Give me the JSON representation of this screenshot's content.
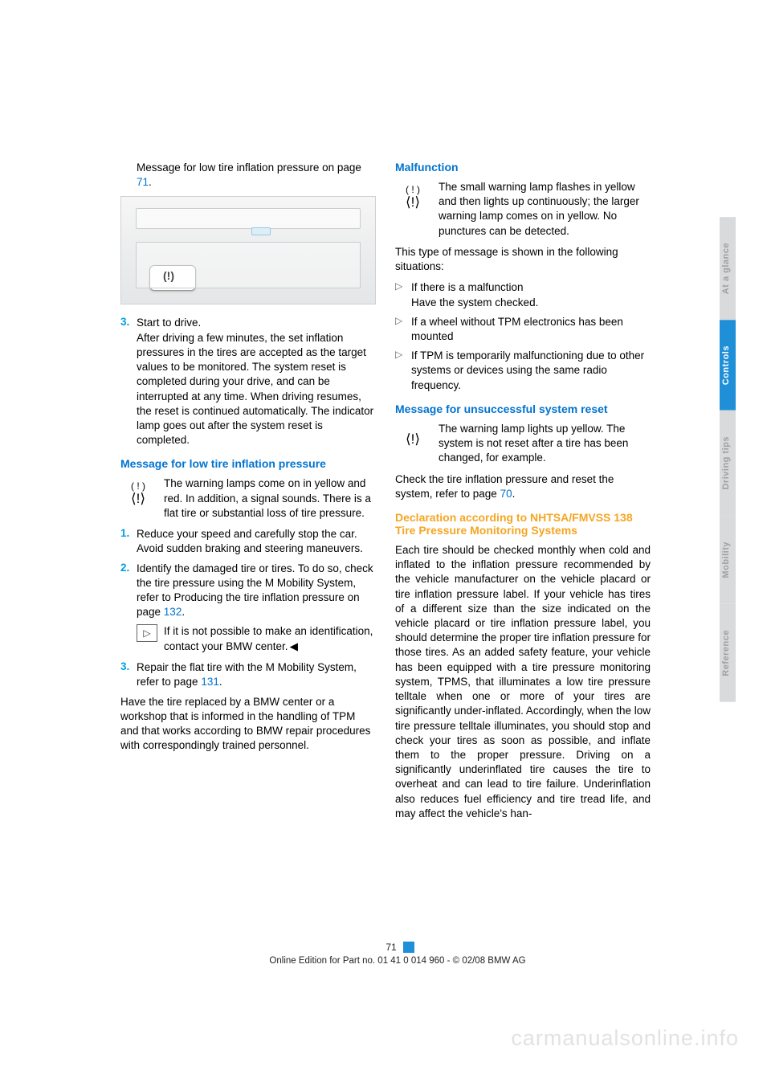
{
  "left_col": {
    "intro": "Message for low tire inflation pressure on page ",
    "intro_ref": "71",
    "intro_end": ".",
    "step3_num": "3.",
    "step3_title": "Start to drive.",
    "step3_body": "After driving a few minutes, the set inflation pressures in the tires are accepted as the target values to be monitored. The system reset is completed during your drive, and can be interrupted at any time. When driving resumes, the reset is continued automatically. The indicator lamp goes out after the system reset is completed.",
    "h1": "Message for low tire inflation pressure",
    "icon1_body": "The warning lamps come on in yellow and red. In addition, a signal sounds. There is a flat tire or substantial loss of tire pressure.",
    "n1": "1.",
    "n1_body": "Reduce your speed and carefully stop the car. Avoid sudden braking and steering maneuvers.",
    "n2": "2.",
    "n2_body_a": "Identify the damaged tire or tires. To do so, check the tire pressure using the M Mobility System, refer to Producing the tire inflation pressure on page ",
    "n2_ref": "132",
    "n2_body_b": ".",
    "note": "If it is not possible to make an identification, contact your BMW center.",
    "n3": "3.",
    "n3_body_a": "Repair the flat tire with the M Mobility System, refer to page ",
    "n3_ref": "131",
    "n3_body_b": ".",
    "closing": "Have the tire replaced by a BMW center or a workshop that is informed in the handling of TPM and that works according to BMW repair procedures with correspondingly trained personnel."
  },
  "right_col": {
    "h1": "Malfunction",
    "icon1_body": "The small warning lamp flashes in yellow and then lights up continuously; the larger warning lamp comes on in yellow. No punctures can be detected.",
    "p1": "This type of message is shown in the following situations:",
    "b1a": "If there is a malfunction",
    "b1b": "Have the system checked.",
    "b2": "If a wheel without TPM electronics has been mounted",
    "b3": "If TPM is temporarily malfunctioning due to other systems or devices using the same radio frequency.",
    "h2": "Message for unsuccessful system reset",
    "icon2_body": "The warning lamp lights up yellow. The system is not reset after a tire has been changed, for example.",
    "p2a": "Check the tire inflation pressure and reset the system, refer to page ",
    "p2_ref": "70",
    "p2b": ".",
    "h3a": "Declaration according to NHTSA/FMVSS 138",
    "h3b": "Tire Pressure Monitoring Systems",
    "p3": "Each tire should be checked monthly when cold and inflated to the inflation pressure recommended by the vehicle manufacturer on the vehicle placard or tire inflation pressure label. If your vehicle has tires of a different size than the size indicated on the vehicle placard or tire inflation pressure label, you should determine the proper tire inflation pressure for those tires. As an added safety feature, your vehicle has been equipped with a tire pressure monitoring system, TPMS, that illuminates a low tire pressure telltale when one or more of your tires are significantly under-inflated. Accordingly, when the low tire pressure telltale illuminates, you should stop and check your tires as soon as possible, and inflate them to the proper pressure. Driving on a significantly underinflated tire causes the tire to overheat and can lead to tire failure. Underinflation also reduces fuel efficiency and tire tread life, and may affect the vehicle's han-"
  },
  "tabs": {
    "t1": "At a glance",
    "t2": "Controls",
    "t3": "Driving tips",
    "t4": "Mobility",
    "t5": "Reference"
  },
  "footer": {
    "page": "71",
    "line": "Online Edition for Part no. 01 41 0 014 960 - © 02/08 BMW AG"
  },
  "watermark": "carmanualsonline.info",
  "colors": {
    "link": "#0073cf",
    "orange": "#f5a623",
    "tab_blue": "#1f8fd8",
    "tab_grey": "#d9dadb"
  }
}
